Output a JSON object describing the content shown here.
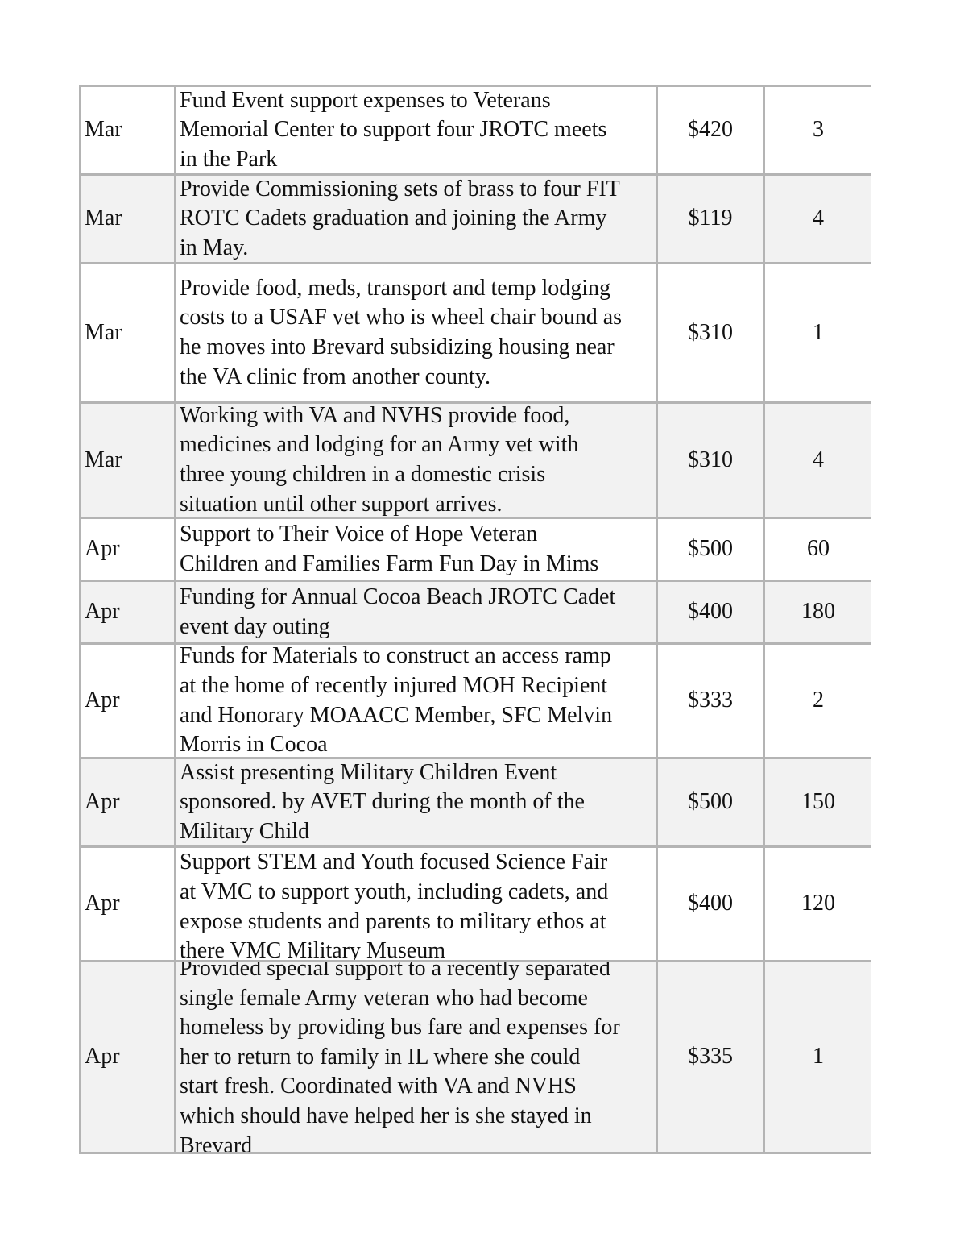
{
  "table": {
    "rows": [
      {
        "month": "Mar",
        "description": [
          "Fund Event support expenses to Veterans",
          "Memorial Center to support four JROTC meets",
          "in the Park"
        ],
        "amount": "$420",
        "count": "3"
      },
      {
        "month": "Mar",
        "description": [
          "Provide Commissioning sets of brass to four FIT",
          "ROTC Cadets graduation and joining the Army",
          "in May."
        ],
        "amount": "$119",
        "count": "4"
      },
      {
        "month": "Mar",
        "description": [
          "Provide food, meds, transport and temp lodging",
          "costs to a USAF vet who is wheel chair bound as",
          "he moves into Brevard subsidizing housing near",
          "the VA clinic from another county."
        ],
        "amount": "$310",
        "count": "1"
      },
      {
        "month": "Mar",
        "description": [
          "Working with VA and NVHS provide food,",
          "medicines and lodging for an Army vet with",
          "three young children in a domestic crisis",
          "situation until other support arrives."
        ],
        "amount": "$310",
        "count": "4"
      },
      {
        "month": "Apr",
        "description": [
          "Support to Their Voice of Hope Veteran",
          "Children and Families Farm Fun Day in Mims"
        ],
        "amount": "$500",
        "count": "60"
      },
      {
        "month": "Apr",
        "description": [
          "Funding for Annual Cocoa Beach JROTC Cadet",
          "event day outing"
        ],
        "amount": "$400",
        "count": "180"
      },
      {
        "month": "Apr",
        "description": [
          "Funds for Materials to construct an access ramp",
          "at the home of recently injured MOH Recipient",
          "and Honorary MOAACC Member, SFC Melvin",
          "Morris in Cocoa"
        ],
        "amount": "$333",
        "count": "2"
      },
      {
        "month": "Apr",
        "description": [
          "Assist presenting Military Children Event",
          "sponsored. by AVET during the month of the",
          "Military Child"
        ],
        "amount": "$500",
        "count": "150"
      },
      {
        "month": "Apr",
        "description": [
          "Support STEM and Youth focused Science Fair",
          "at VMC to support youth, including cadets, and",
          "expose students and parents to military ethos at",
          "there VMC Military Museum"
        ],
        "amount": "$400",
        "count": "120"
      },
      {
        "month": "Apr",
        "description": [
          "Provided special support to a recently separated",
          "single female Army veteran who had become",
          "homeless by providing bus fare and expenses for",
          "her to return to family in IL where she could",
          "start fresh. Coordinated with VA and NVHS",
          "which should have helped her is she stayed in",
          "Brevard"
        ],
        "amount": "$335",
        "count": "1"
      }
    ]
  }
}
